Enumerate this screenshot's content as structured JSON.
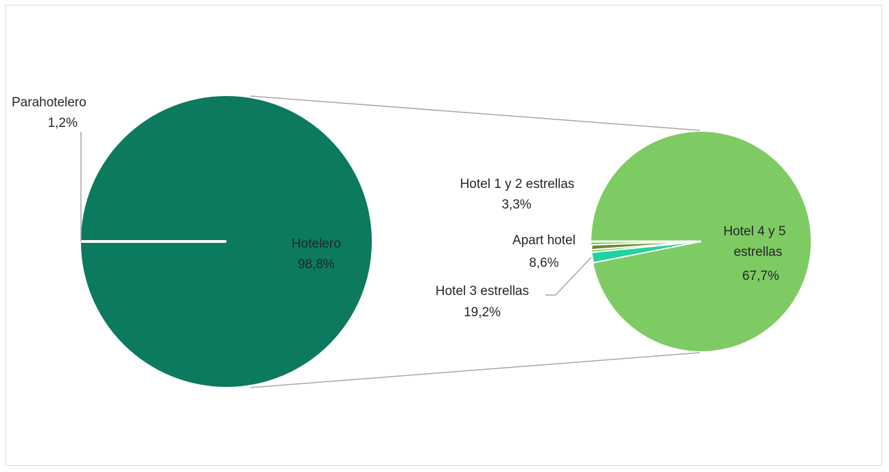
{
  "chart_data": {
    "type": "pie",
    "subtype": "pie-of-pie",
    "title": "",
    "main_pie": {
      "slices": [
        {
          "name": "Hotelero",
          "value": 98.8,
          "value_label": "98,8%",
          "color": "#0c7a5e"
        },
        {
          "name": "Parahotelero",
          "value": 1.2,
          "value_label": "1,2%",
          "color": "#0c7a5e"
        }
      ]
    },
    "secondary_pie": {
      "slices": [
        {
          "name": "Hotel 4 y 5 estrellas",
          "name_lines": [
            "Hotel 4 y 5",
            "estrellas"
          ],
          "value": 67.7,
          "value_label": "67,7%",
          "color": "#7ecb63"
        },
        {
          "name": "Hotel 3 estrellas",
          "value": 19.2,
          "value_label": "19,2%",
          "color": "#7ecb63"
        },
        {
          "name": "Apart hotel",
          "value": 8.6,
          "value_label": "8,6%",
          "color": "#1ed39d"
        },
        {
          "name": "Hotel 1 y 2 estrellas",
          "value": 3.3,
          "value_label": "3,3%",
          "color": "#6b8a2c"
        }
      ]
    },
    "legend": "none",
    "grid": false
  }
}
